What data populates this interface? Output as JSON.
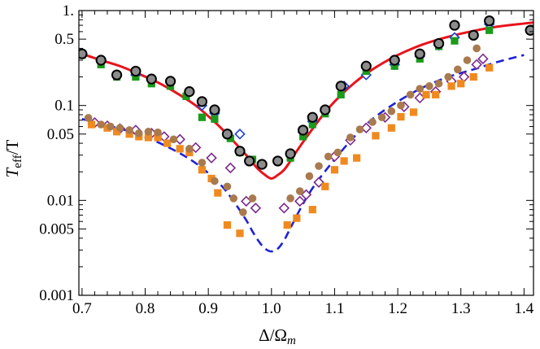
{
  "chart_data": {
    "type": "scatter",
    "title": "",
    "xlabel_parts": {
      "main": "Δ/Ω",
      "sub": "m"
    },
    "ylabel_parts": {
      "main": "T",
      "sub": "eff",
      "tail": "/T"
    },
    "x_scale": "linear",
    "y_scale": "log",
    "xlim": [
      0.695,
      1.415
    ],
    "ylim": [
      0.001,
      1.0
    ],
    "grid": false,
    "x_ticks": [
      {
        "value": 0.7,
        "label": "0.7"
      },
      {
        "value": 0.8,
        "label": "0.8"
      },
      {
        "value": 0.9,
        "label": "0.9"
      },
      {
        "value": 1.0,
        "label": "1.0"
      },
      {
        "value": 1.1,
        "label": "1.1"
      },
      {
        "value": 1.2,
        "label": "1.2"
      },
      {
        "value": 1.3,
        "label": "1.3"
      },
      {
        "value": 1.4,
        "label": "1.4"
      }
    ],
    "y_ticks": [
      {
        "value": 1.0,
        "label": "1."
      },
      {
        "value": 0.5,
        "label": "0.5"
      },
      {
        "value": 0.1,
        "label": "0.1"
      },
      {
        "value": 0.05,
        "label": "0.05"
      },
      {
        "value": 0.01,
        "label": "0.01"
      },
      {
        "value": 0.005,
        "label": "0.005"
      },
      {
        "value": 0.001,
        "label": "0.001"
      }
    ],
    "colors": {
      "red_curve": "#e8141b",
      "blue_curve": "#1e22d6",
      "gray_circle_fill": "#8c8c8c",
      "green_square": "#1c9a1c",
      "blue_diamond": "#1a3fd6",
      "brown_circle": "#a87a4e",
      "orange_square": "#f08a1e",
      "purple_diamond": "#7b2a8c"
    },
    "series": [
      {
        "name": "red-curve",
        "kind": "line",
        "style": "solid",
        "color_key": "red_curve",
        "x": [
          0.7,
          0.73,
          0.76,
          0.79,
          0.82,
          0.85,
          0.88,
          0.9,
          0.92,
          0.94,
          0.96,
          0.97,
          0.98,
          0.99,
          1.0,
          1.01,
          1.02,
          1.03,
          1.04,
          1.06,
          1.08,
          1.1,
          1.13,
          1.16,
          1.2,
          1.24,
          1.28,
          1.32,
          1.36,
          1.4,
          1.415
        ],
        "y": [
          0.35,
          0.3,
          0.26,
          0.215,
          0.175,
          0.135,
          0.1,
          0.077,
          0.058,
          0.042,
          0.03,
          0.025,
          0.021,
          0.0185,
          0.017,
          0.0185,
          0.021,
          0.026,
          0.033,
          0.051,
          0.077,
          0.11,
          0.17,
          0.24,
          0.34,
          0.44,
          0.53,
          0.61,
          0.68,
          0.73,
          0.75
        ]
      },
      {
        "name": "blue-dashed-curve",
        "kind": "line",
        "style": "dashed",
        "color_key": "blue_curve",
        "x": [
          0.7,
          0.74,
          0.78,
          0.82,
          0.86,
          0.89,
          0.92,
          0.94,
          0.96,
          0.97,
          0.98,
          0.99,
          1.0,
          1.01,
          1.02,
          1.03,
          1.05,
          1.07,
          1.1,
          1.13,
          1.16,
          1.2,
          1.24,
          1.28,
          1.32,
          1.36,
          1.4
        ],
        "y": [
          0.072,
          0.062,
          0.052,
          0.041,
          0.03,
          0.022,
          0.0145,
          0.0098,
          0.0062,
          0.0047,
          0.0037,
          0.0031,
          0.0029,
          0.0031,
          0.0038,
          0.0051,
          0.0092,
          0.015,
          0.027,
          0.046,
          0.072,
          0.11,
          0.155,
          0.2,
          0.24,
          0.29,
          0.34
        ]
      },
      {
        "name": "gray-circles",
        "kind": "marker",
        "marker": "circle",
        "color_key": "gray_circle_fill",
        "x": [
          0.7,
          0.73,
          0.755,
          0.785,
          0.81,
          0.84,
          0.87,
          0.89,
          0.91,
          0.93,
          0.95,
          0.965,
          0.985,
          1.01,
          1.03,
          1.05,
          1.065,
          1.085,
          1.11,
          1.15,
          1.195,
          1.235,
          1.265,
          1.29,
          1.32,
          1.345,
          1.41
        ],
        "y": [
          0.35,
          0.3,
          0.21,
          0.23,
          0.19,
          0.18,
          0.14,
          0.11,
          0.09,
          0.05,
          0.033,
          0.026,
          0.024,
          0.026,
          0.031,
          0.055,
          0.075,
          0.09,
          0.16,
          0.26,
          0.3,
          0.35,
          0.45,
          0.7,
          0.55,
          0.78,
          0.62
        ]
      },
      {
        "name": "green-squares",
        "kind": "marker",
        "marker": "square",
        "color_key": "green_square",
        "x": [
          0.7,
          0.73,
          0.755,
          0.785,
          0.81,
          0.84,
          0.865,
          0.89,
          0.91,
          0.935,
          0.95,
          0.97,
          1.03,
          1.05,
          1.065,
          1.085,
          1.11,
          1.15,
          1.195,
          1.235,
          1.265,
          1.29,
          1.345,
          1.41
        ],
        "y": [
          0.34,
          0.27,
          0.2,
          0.2,
          0.17,
          0.16,
          0.125,
          0.075,
          0.072,
          0.045,
          0.032,
          0.027,
          0.028,
          0.047,
          0.063,
          0.082,
          0.13,
          0.23,
          0.26,
          0.31,
          0.42,
          0.48,
          0.62,
          0.63
        ]
      },
      {
        "name": "blue-diamonds",
        "kind": "marker",
        "marker": "diamond-open",
        "color_key": "blue_diamond",
        "x": [
          0.785,
          0.87,
          0.89,
          0.91,
          0.95,
          1.05,
          1.065,
          1.085,
          1.115,
          1.15,
          1.195,
          1.235,
          1.265,
          1.29,
          1.345
        ],
        "y": [
          0.21,
          0.14,
          0.1,
          0.083,
          0.05,
          0.052,
          0.068,
          0.087,
          0.16,
          0.21,
          0.27,
          0.33,
          0.43,
          0.52,
          0.72
        ]
      },
      {
        "name": "brown-circles",
        "kind": "marker",
        "marker": "circle",
        "color_key": "brown_circle",
        "x": [
          0.71,
          0.73,
          0.745,
          0.76,
          0.775,
          0.79,
          0.805,
          0.82,
          0.845,
          0.87,
          0.89,
          0.91,
          0.93,
          0.94,
          0.955,
          0.97,
          1.03,
          1.045,
          1.06,
          1.075,
          1.09,
          1.105,
          1.125,
          1.14,
          1.16,
          1.175,
          1.19,
          1.205,
          1.22,
          1.235,
          1.25,
          1.265,
          1.28,
          1.295,
          1.31,
          1.325
        ],
        "y": [
          0.074,
          0.063,
          0.06,
          0.058,
          0.055,
          0.051,
          0.053,
          0.052,
          0.044,
          0.035,
          0.025,
          0.016,
          0.014,
          0.0105,
          0.0075,
          0.0105,
          0.0105,
          0.0125,
          0.018,
          0.023,
          0.029,
          0.032,
          0.046,
          0.056,
          0.067,
          0.075,
          0.087,
          0.1,
          0.13,
          0.15,
          0.16,
          0.17,
          0.2,
          0.24,
          0.3,
          0.4
        ]
      },
      {
        "name": "orange-squares",
        "kind": "marker",
        "marker": "square",
        "color_key": "orange_square",
        "x": [
          0.715,
          0.74,
          0.755,
          0.775,
          0.79,
          0.805,
          0.82,
          0.835,
          0.855,
          0.87,
          0.89,
          0.905,
          0.915,
          0.93,
          0.95,
          1.025,
          1.04,
          1.065,
          1.085,
          1.1,
          1.115,
          1.135,
          1.165,
          1.19,
          1.205,
          1.225,
          1.245,
          1.26,
          1.285,
          1.3,
          1.32,
          1.345
        ],
        "y": [
          0.063,
          0.058,
          0.053,
          0.05,
          0.047,
          0.046,
          0.046,
          0.04,
          0.035,
          0.032,
          0.021,
          0.017,
          0.012,
          0.0055,
          0.0045,
          0.0055,
          0.0065,
          0.008,
          0.014,
          0.021,
          0.026,
          0.028,
          0.048,
          0.058,
          0.076,
          0.085,
          0.13,
          0.13,
          0.16,
          0.17,
          0.2,
          0.25
        ]
      },
      {
        "name": "purple-diamonds",
        "kind": "marker",
        "marker": "diamond-open",
        "color_key": "purple_diamond",
        "x": [
          0.72,
          0.74,
          0.76,
          0.785,
          0.81,
          0.83,
          0.855,
          0.88,
          0.905,
          0.935,
          0.96,
          0.975,
          1.02,
          1.045,
          1.055,
          1.075,
          1.1,
          1.125,
          1.15,
          1.18,
          1.21,
          1.235,
          1.26,
          1.285,
          1.305,
          1.325,
          1.335
        ],
        "y": [
          0.066,
          0.061,
          0.057,
          0.055,
          0.051,
          0.047,
          0.044,
          0.036,
          0.028,
          0.022,
          0.0098,
          0.0083,
          0.0083,
          0.0098,
          0.0115,
          0.0155,
          0.029,
          0.043,
          0.058,
          0.075,
          0.097,
          0.12,
          0.14,
          0.18,
          0.2,
          0.27,
          0.31
        ]
      }
    ]
  }
}
